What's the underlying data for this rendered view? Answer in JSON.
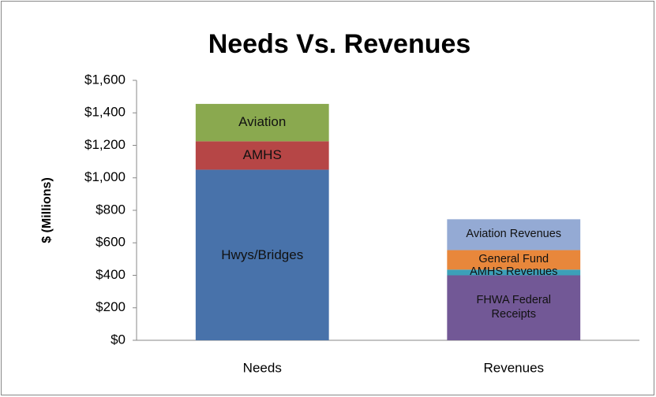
{
  "chart_data": {
    "type": "stacked_bar",
    "title": "Needs Vs. Revenues",
    "y_label": "$ (Millions)",
    "categories": [
      "Needs",
      "Revenues"
    ],
    "series": [
      {
        "name": "Hwys/Bridges",
        "color": "#4872aa",
        "values": [
          1050,
          null
        ]
      },
      {
        "name": "AMHS",
        "color": "#b64646",
        "values": [
          175,
          null
        ]
      },
      {
        "name": "Aviation",
        "color": "#8aa94f",
        "values": [
          230,
          null
        ]
      },
      {
        "name": "FHWA Federal Receipts",
        "color": "#725896",
        "values": [
          null,
          400
        ]
      },
      {
        "name": "AMHS Revenues",
        "color": "#3ca0b8",
        "values": [
          null,
          35
        ]
      },
      {
        "name": "General Fund",
        "color": "#e8873b",
        "values": [
          null,
          120
        ]
      },
      {
        "name": "Aviation Revenues",
        "color": "#94aad4",
        "values": [
          null,
          190
        ]
      }
    ],
    "ylim": [
      0,
      1600
    ],
    "yticks": [
      {
        "value": 0,
        "label": "$0"
      },
      {
        "value": 200,
        "label": "$200"
      },
      {
        "value": 400,
        "label": "$400"
      },
      {
        "value": 600,
        "label": "$600"
      },
      {
        "value": 800,
        "label": "$800"
      },
      {
        "value": 1000,
        "label": "$1,000"
      },
      {
        "value": 1200,
        "label": "$1,200"
      },
      {
        "value": 1400,
        "label": "$1,400"
      },
      {
        "value": 1600,
        "label": "$1,600"
      }
    ],
    "grid": false
  }
}
